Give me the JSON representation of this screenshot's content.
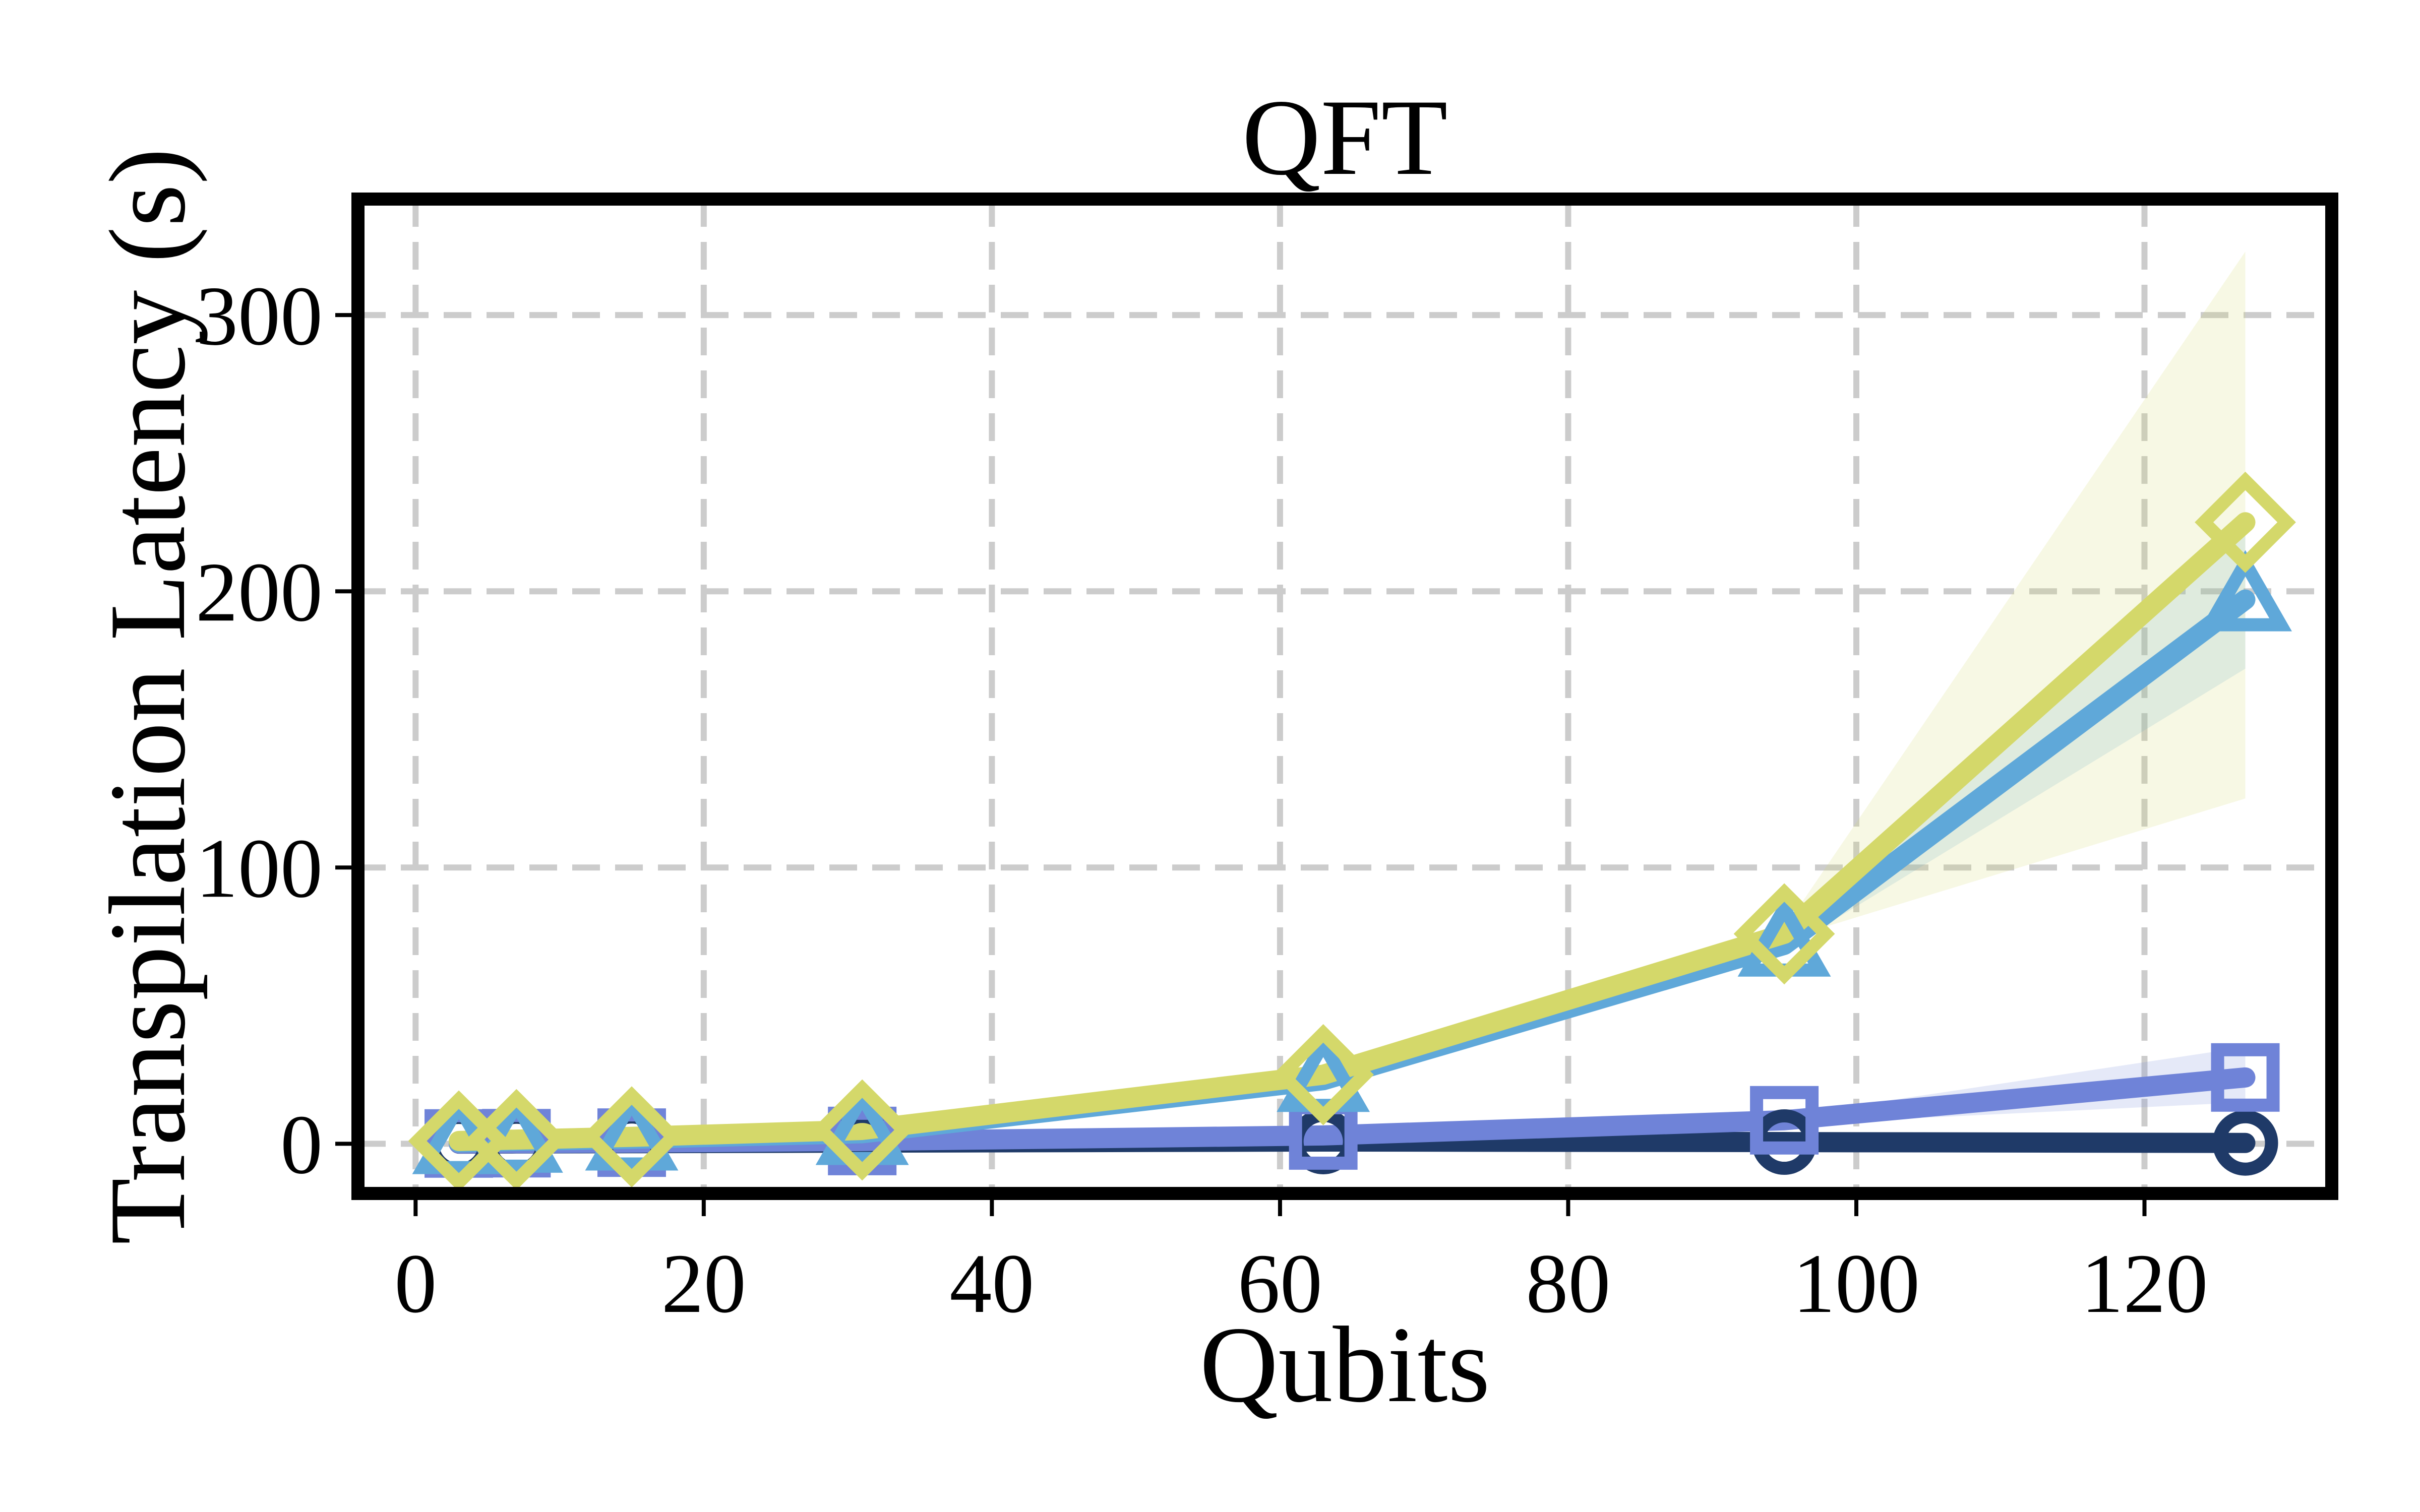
{
  "chart_data": {
    "type": "line",
    "title": "QFT",
    "xlabel": "Qubits",
    "ylabel": "Transpilation Latency (s)",
    "xlim": [
      -4,
      133
    ],
    "ylim": [
      -18,
      342
    ],
    "xticks": [
      0,
      20,
      40,
      60,
      80,
      100,
      120
    ],
    "yticks": [
      0,
      100,
      200,
      300
    ],
    "grid": true,
    "grid_style": "dashed",
    "legend": null,
    "x": [
      3,
      7,
      15,
      31,
      63,
      95,
      127
    ],
    "series": [
      {
        "color": "#1f3a68",
        "marker": "circle",
        "values": [
          0.05,
          0.1,
          0.2,
          0.4,
          0.8,
          0.6,
          0.3
        ]
      },
      {
        "color": "#6f83d8",
        "marker": "square",
        "values": [
          0.1,
          0.2,
          0.4,
          1.0,
          3.0,
          8.5,
          24.0
        ],
        "band_lower": [
          0.1,
          0.2,
          0.4,
          0.8,
          2.5,
          7.0,
          15.0
        ],
        "band_upper": [
          0.1,
          0.2,
          0.4,
          1.2,
          3.5,
          10.0,
          35.0
        ]
      },
      {
        "color": "#5fa8d9",
        "marker": "triangle",
        "values": [
          0.5,
          1.0,
          1.8,
          3.8,
          23.0,
          72.0,
          197.0
        ],
        "band_lower": [
          0.5,
          1.0,
          1.8,
          3.5,
          21.0,
          70.0,
          172.0
        ],
        "band_upper": [
          0.5,
          1.0,
          1.8,
          4.1,
          25.0,
          74.0,
          222.0
        ]
      },
      {
        "color": "#d4d86a",
        "marker": "diamond",
        "values": [
          1.0,
          1.5,
          2.5,
          5.0,
          25.0,
          76.0,
          225.0
        ],
        "band_lower": [
          1.0,
          1.5,
          2.5,
          4.5,
          23.0,
          74.0,
          125.0
        ],
        "band_upper": [
          1.0,
          1.5,
          2.5,
          5.5,
          27.0,
          78.0,
          323.0
        ]
      }
    ]
  }
}
